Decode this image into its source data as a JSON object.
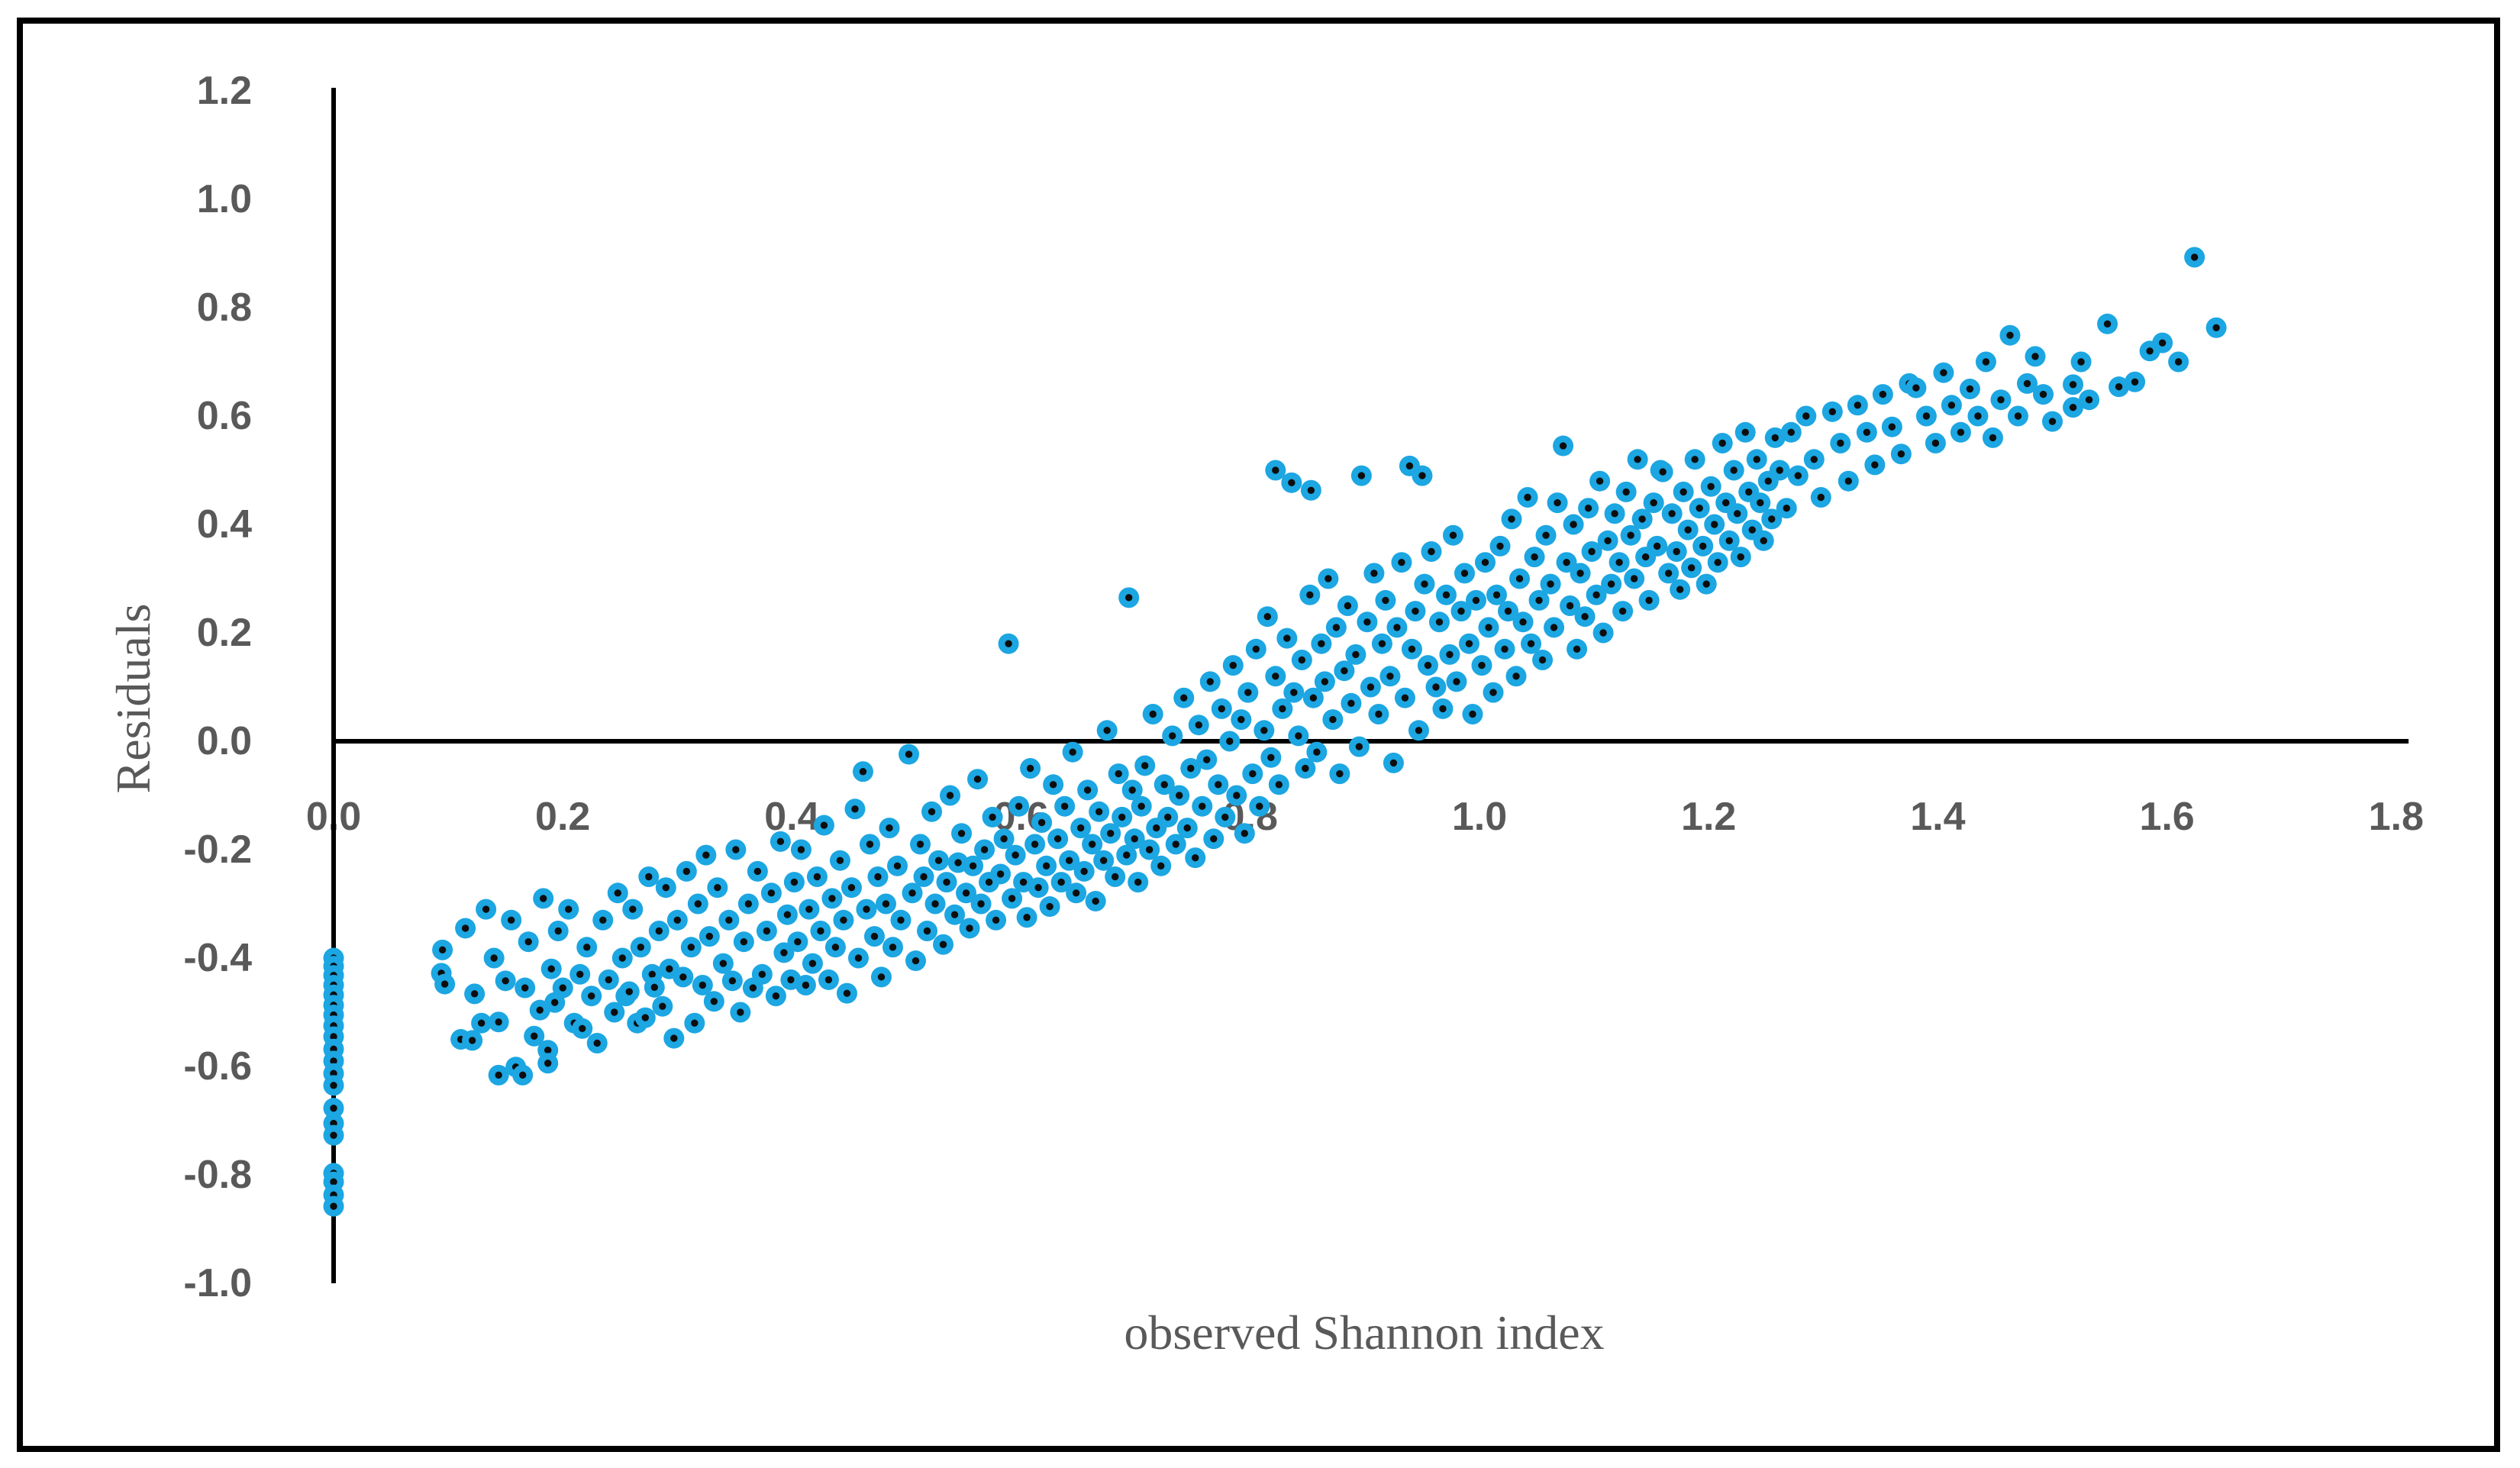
{
  "chart_data": {
    "type": "scatter",
    "xlabel": "observed Shannon index",
    "ylabel": "Residuals",
    "xlim": [
      0,
      1.8
    ],
    "ylim": [
      -1.0,
      1.2
    ],
    "grid": false,
    "legend": "none",
    "x_tick_labels": [
      "0.0",
      "0.2",
      "0.4",
      "0.6",
      "0.8",
      "1.0",
      "1.2",
      "1.4",
      "1.6",
      "1.8"
    ],
    "y_tick_labels": [
      "1.2",
      "1.0",
      "0.8",
      "0.6",
      "0.4",
      "0.2",
      "0.0",
      "-0.2",
      "-0.4",
      "-0.6",
      "-0.8",
      "-1.0"
    ],
    "colors": {
      "marker_fill": "#1CA6E2",
      "marker_center": "#0d0d0d",
      "axis_line": "#000000",
      "tick_label": "#595959",
      "axis_title": "#595959",
      "frame_border": "#000000"
    },
    "points": [
      [
        0,
        -0.4
      ],
      [
        0,
        -0.415
      ],
      [
        0,
        -0.432
      ],
      [
        0,
        -0.45
      ],
      [
        0,
        -0.468
      ],
      [
        0,
        -0.487
      ],
      [
        0,
        -0.505
      ],
      [
        0,
        -0.525
      ],
      [
        0,
        -0.545
      ],
      [
        0,
        -0.568
      ],
      [
        0,
        -0.59
      ],
      [
        0,
        -0.613
      ],
      [
        0,
        -0.635
      ],
      [
        0,
        -0.677
      ],
      [
        0,
        -0.705
      ],
      [
        0,
        -0.727
      ],
      [
        0,
        -0.797
      ],
      [
        0,
        -0.813
      ],
      [
        0,
        -0.837
      ],
      [
        0,
        -0.858
      ],
      [
        0.095,
        -0.385
      ],
      [
        0.094,
        -0.428
      ],
      [
        0.097,
        -0.448
      ],
      [
        0.111,
        -0.55
      ],
      [
        0.115,
        -0.345
      ],
      [
        0.121,
        -0.552
      ],
      [
        0.123,
        -0.466
      ],
      [
        0.129,
        -0.52
      ],
      [
        0.133,
        -0.31
      ],
      [
        0.14,
        -0.4
      ],
      [
        0.144,
        -0.518
      ],
      [
        0.144,
        -0.616
      ],
      [
        0.15,
        -0.442
      ],
      [
        0.155,
        -0.33
      ],
      [
        0.159,
        -0.601
      ],
      [
        0.165,
        -0.616
      ],
      [
        0.167,
        -0.455
      ],
      [
        0.17,
        -0.37
      ],
      [
        0.175,
        -0.544
      ],
      [
        0.18,
        -0.496
      ],
      [
        0.183,
        -0.29
      ],
      [
        0.187,
        -0.57
      ],
      [
        0.187,
        -0.594
      ],
      [
        0.19,
        -0.42
      ],
      [
        0.193,
        -0.482
      ],
      [
        0.196,
        -0.35
      ],
      [
        0.2,
        -0.455
      ],
      [
        0.205,
        -0.31
      ],
      [
        0.21,
        -0.52
      ],
      [
        0.215,
        -0.43
      ],
      [
        0.217,
        -0.53
      ],
      [
        0.221,
        -0.38
      ],
      [
        0.225,
        -0.47
      ],
      [
        0.23,
        -0.557
      ],
      [
        0.235,
        -0.33
      ],
      [
        0.24,
        -0.44
      ],
      [
        0.245,
        -0.5
      ],
      [
        0.248,
        -0.28
      ],
      [
        0.252,
        -0.4
      ],
      [
        0.255,
        -0.47
      ],
      [
        0.258,
        -0.462
      ],
      [
        0.261,
        -0.31
      ],
      [
        0.265,
        -0.52
      ],
      [
        0.268,
        -0.38
      ],
      [
        0.272,
        -0.51
      ],
      [
        0.275,
        -0.25
      ],
      [
        0.278,
        -0.43
      ],
      [
        0.28,
        -0.454
      ],
      [
        0.284,
        -0.35
      ],
      [
        0.287,
        -0.489
      ],
      [
        0.29,
        -0.27
      ],
      [
        0.293,
        -0.42
      ],
      [
        0.297,
        -0.548
      ],
      [
        0.3,
        -0.33
      ],
      [
        0.305,
        -0.435
      ],
      [
        0.308,
        -0.24
      ],
      [
        0.312,
        -0.38
      ],
      [
        0.315,
        -0.52
      ],
      [
        0.318,
        -0.3
      ],
      [
        0.322,
        -0.45
      ],
      [
        0.325,
        -0.21
      ],
      [
        0.328,
        -0.36
      ],
      [
        0.332,
        -0.48
      ],
      [
        0.335,
        -0.27
      ],
      [
        0.34,
        -0.41
      ],
      [
        0.345,
        -0.33
      ],
      [
        0.348,
        -0.442
      ],
      [
        0.351,
        -0.2
      ],
      [
        0.355,
        -0.5
      ],
      [
        0.358,
        -0.37
      ],
      [
        0.362,
        -0.3
      ],
      [
        0.366,
        -0.455
      ],
      [
        0.37,
        -0.24
      ],
      [
        0.374,
        -0.43
      ],
      [
        0.378,
        -0.35
      ],
      [
        0.382,
        -0.28
      ],
      [
        0.386,
        -0.47
      ],
      [
        0.39,
        -0.185
      ],
      [
        0.393,
        -0.39
      ],
      [
        0.396,
        -0.32
      ],
      [
        0.399,
        -0.44
      ],
      [
        0.402,
        -0.26
      ],
      [
        0.405,
        -0.37
      ],
      [
        0.408,
        -0.2
      ],
      [
        0.412,
        -0.45
      ],
      [
        0.415,
        -0.31
      ],
      [
        0.418,
        -0.41
      ],
      [
        0.422,
        -0.25
      ],
      [
        0.425,
        -0.35
      ],
      [
        0.428,
        -0.155
      ],
      [
        0.432,
        -0.44
      ],
      [
        0.435,
        -0.29
      ],
      [
        0.438,
        -0.38
      ],
      [
        0.442,
        -0.22
      ],
      [
        0.445,
        -0.33
      ],
      [
        0.448,
        -0.465
      ],
      [
        0.452,
        -0.27
      ],
      [
        0.455,
        -0.125
      ],
      [
        0.458,
        -0.4
      ],
      [
        0.462,
        -0.056
      ],
      [
        0.465,
        -0.31
      ],
      [
        0.468,
        -0.19
      ],
      [
        0.472,
        -0.36
      ],
      [
        0.475,
        -0.25
      ],
      [
        0.478,
        -0.435
      ],
      [
        0.482,
        -0.3
      ],
      [
        0.485,
        -0.16
      ],
      [
        0.488,
        -0.38
      ],
      [
        0.492,
        -0.23
      ],
      [
        0.495,
        -0.33
      ],
      [
        0.502,
        -0.024
      ],
      [
        0.505,
        -0.28
      ],
      [
        0.508,
        -0.405
      ],
      [
        0.512,
        -0.19
      ],
      [
        0.515,
        -0.25
      ],
      [
        0.518,
        -0.35
      ],
      [
        0.522,
        -0.13
      ],
      [
        0.525,
        -0.3
      ],
      [
        0.528,
        -0.22
      ],
      [
        0.532,
        -0.375
      ],
      [
        0.535,
        -0.26
      ],
      [
        0.538,
        -0.1
      ],
      [
        0.542,
        -0.32
      ],
      [
        0.545,
        -0.224
      ],
      [
        0.548,
        -0.17
      ],
      [
        0.552,
        -0.28
      ],
      [
        0.555,
        -0.345
      ],
      [
        0.558,
        -0.23
      ],
      [
        0.562,
        -0.07
      ],
      [
        0.565,
        -0.3
      ],
      [
        0.568,
        -0.2
      ],
      [
        0.572,
        -0.26
      ],
      [
        0.575,
        -0.14
      ],
      [
        0.578,
        -0.33
      ],
      [
        0.582,
        -0.245
      ],
      [
        0.585,
        -0.18
      ],
      [
        0.589,
        0.18
      ],
      [
        0.592,
        -0.29
      ],
      [
        0.595,
        -0.21
      ],
      [
        0.598,
        -0.12
      ],
      [
        0.602,
        -0.26
      ],
      [
        0.605,
        -0.325
      ],
      [
        0.608,
        -0.05
      ],
      [
        0.612,
        -0.19
      ],
      [
        0.615,
        -0.27
      ],
      [
        0.618,
        -0.15
      ],
      [
        0.622,
        -0.23
      ],
      [
        0.625,
        -0.305
      ],
      [
        0.628,
        -0.08
      ],
      [
        0.632,
        -0.18
      ],
      [
        0.635,
        -0.26
      ],
      [
        0.638,
        -0.12
      ],
      [
        0.642,
        -0.22
      ],
      [
        0.645,
        -0.02
      ],
      [
        0.648,
        -0.28
      ],
      [
        0.652,
        -0.16
      ],
      [
        0.655,
        -0.24
      ],
      [
        0.658,
        -0.09
      ],
      [
        0.662,
        -0.19
      ],
      [
        0.665,
        -0.295
      ],
      [
        0.668,
        -0.13
      ],
      [
        0.672,
        -0.22
      ],
      [
        0.675,
        0.02
      ],
      [
        0.678,
        -0.17
      ],
      [
        0.682,
        -0.25
      ],
      [
        0.685,
        -0.06
      ],
      [
        0.688,
        -0.14
      ],
      [
        0.692,
        -0.21
      ],
      [
        0.694,
        0.265
      ],
      [
        0.697,
        -0.09
      ],
      [
        0.699,
        -0.18
      ],
      [
        0.702,
        -0.26
      ],
      [
        0.705,
        -0.12
      ],
      [
        0.708,
        -0.045
      ],
      [
        0.712,
        -0.2
      ],
      [
        0.715,
        0.05
      ],
      [
        0.718,
        -0.16
      ],
      [
        0.722,
        -0.23
      ],
      [
        0.725,
        -0.08
      ],
      [
        0.728,
        -0.14
      ],
      [
        0.732,
        0.01
      ],
      [
        0.735,
        -0.19
      ],
      [
        0.738,
        -0.1
      ],
      [
        0.742,
        0.08
      ],
      [
        0.745,
        -0.16
      ],
      [
        0.748,
        -0.05
      ],
      [
        0.752,
        -0.215
      ],
      [
        0.755,
        0.03
      ],
      [
        0.758,
        -0.12
      ],
      [
        0.762,
        -0.034
      ],
      [
        0.765,
        0.11
      ],
      [
        0.768,
        -0.18
      ],
      [
        0.772,
        -0.08
      ],
      [
        0.775,
        0.06
      ],
      [
        0.778,
        -0.14
      ],
      [
        0.782,
        0
      ],
      [
        0.785,
        0.14
      ],
      [
        0.788,
        -0.1
      ],
      [
        0.792,
        0.04
      ],
      [
        0.795,
        -0.17
      ],
      [
        0.798,
        0.09
      ],
      [
        0.802,
        -0.06
      ],
      [
        0.805,
        0.17
      ],
      [
        0.808,
        -0.12
      ],
      [
        0.812,
        0.02
      ],
      [
        0.815,
        0.23
      ],
      [
        0.818,
        -0.03
      ],
      [
        0.822,
        0.5
      ],
      [
        0.822,
        0.12
      ],
      [
        0.825,
        -0.08
      ],
      [
        0.828,
        0.06
      ],
      [
        0.832,
        0.19
      ],
      [
        0.836,
        0.477
      ],
      [
        0.838,
        0.09
      ],
      [
        0.842,
        0.01
      ],
      [
        0.845,
        0.15
      ],
      [
        0.848,
        -0.05
      ],
      [
        0.852,
        0.27
      ],
      [
        0.853,
        0.463
      ],
      [
        0.855,
        0.08
      ],
      [
        0.858,
        -0.02
      ],
      [
        0.862,
        0.18
      ],
      [
        0.865,
        0.11
      ],
      [
        0.868,
        0.3
      ],
      [
        0.872,
        0.04
      ],
      [
        0.875,
        0.21
      ],
      [
        0.878,
        -0.06
      ],
      [
        0.882,
        0.13
      ],
      [
        0.885,
        0.25
      ],
      [
        0.888,
        0.07
      ],
      [
        0.892,
        0.16
      ],
      [
        0.895,
        -0.01
      ],
      [
        0.897,
        0.49
      ],
      [
        0.902,
        0.22
      ],
      [
        0.905,
        0.1
      ],
      [
        0.908,
        0.31
      ],
      [
        0.912,
        0.05
      ],
      [
        0.915,
        0.18
      ],
      [
        0.918,
        0.26
      ],
      [
        0.922,
        0.12
      ],
      [
        0.925,
        -0.04
      ],
      [
        0.928,
        0.21
      ],
      [
        0.932,
        0.33
      ],
      [
        0.935,
        0.08
      ],
      [
        0.939,
        0.508
      ],
      [
        0.941,
        0.17
      ],
      [
        0.944,
        0.24
      ],
      [
        0.947,
        0.02
      ],
      [
        0.95,
        0.49
      ],
      [
        0.952,
        0.29
      ],
      [
        0.955,
        0.14
      ],
      [
        0.958,
        0.35
      ],
      [
        0.962,
        0.1
      ],
      [
        0.965,
        0.22
      ],
      [
        0.968,
        0.06
      ],
      [
        0.971,
        0.27
      ],
      [
        0.974,
        0.16
      ],
      [
        0.977,
        0.38
      ],
      [
        0.98,
        0.11
      ],
      [
        0.984,
        0.24
      ],
      [
        0.987,
        0.31
      ],
      [
        0.991,
        0.18
      ],
      [
        0.994,
        0.05
      ],
      [
        0.997,
        0.26
      ],
      [
        1.002,
        0.14
      ],
      [
        1.005,
        0.33
      ],
      [
        1.008,
        0.21
      ],
      [
        1.012,
        0.09
      ],
      [
        1.015,
        0.27
      ],
      [
        1.018,
        0.36
      ],
      [
        1.022,
        0.17
      ],
      [
        1.025,
        0.24
      ],
      [
        1.028,
        0.41
      ],
      [
        1.032,
        0.12
      ],
      [
        1.035,
        0.3
      ],
      [
        1.038,
        0.22
      ],
      [
        1.042,
        0.45
      ],
      [
        1.045,
        0.18
      ],
      [
        1.048,
        0.34
      ],
      [
        1.052,
        0.26
      ],
      [
        1.055,
        0.15
      ],
      [
        1.058,
        0.38
      ],
      [
        1.062,
        0.29
      ],
      [
        1.065,
        0.21
      ],
      [
        1.068,
        0.44
      ],
      [
        1.073,
        0.545
      ],
      [
        1.076,
        0.33
      ],
      [
        1.079,
        0.25
      ],
      [
        1.082,
        0.4
      ],
      [
        1.085,
        0.17
      ],
      [
        1.088,
        0.31
      ],
      [
        1.092,
        0.23
      ],
      [
        1.095,
        0.43
      ],
      [
        1.098,
        0.35
      ],
      [
        1.102,
        0.27
      ],
      [
        1.105,
        0.48
      ],
      [
        1.108,
        0.2
      ],
      [
        1.112,
        0.37
      ],
      [
        1.115,
        0.29
      ],
      [
        1.118,
        0.42
      ],
      [
        1.122,
        0.33
      ],
      [
        1.125,
        0.24
      ],
      [
        1.128,
        0.46
      ],
      [
        1.132,
        0.38
      ],
      [
        1.135,
        0.3
      ],
      [
        1.138,
        0.52
      ],
      [
        1.142,
        0.41
      ],
      [
        1.145,
        0.34
      ],
      [
        1.148,
        0.26
      ],
      [
        1.152,
        0.44
      ],
      [
        1.155,
        0.36
      ],
      [
        1.158,
        0.5
      ],
      [
        1.16,
        0.497
      ],
      [
        1.165,
        0.31
      ],
      [
        1.168,
        0.42
      ],
      [
        1.172,
        0.35
      ],
      [
        1.175,
        0.28
      ],
      [
        1.178,
        0.46
      ],
      [
        1.182,
        0.39
      ],
      [
        1.185,
        0.32
      ],
      [
        1.188,
        0.52
      ],
      [
        1.192,
        0.43
      ],
      [
        1.195,
        0.36
      ],
      [
        1.198,
        0.29
      ],
      [
        1.202,
        0.47
      ],
      [
        1.205,
        0.4
      ],
      [
        1.208,
        0.33
      ],
      [
        1.212,
        0.55
      ],
      [
        1.215,
        0.44
      ],
      [
        1.218,
        0.37
      ],
      [
        1.222,
        0.5
      ],
      [
        1.225,
        0.42
      ],
      [
        1.228,
        0.34
      ],
      [
        1.232,
        0.57
      ],
      [
        1.235,
        0.46
      ],
      [
        1.238,
        0.39
      ],
      [
        1.242,
        0.52
      ],
      [
        1.245,
        0.44
      ],
      [
        1.248,
        0.37
      ],
      [
        1.252,
        0.48
      ],
      [
        1.255,
        0.41
      ],
      [
        1.258,
        0.56
      ],
      [
        1.262,
        0.5
      ],
      [
        1.268,
        0.43
      ],
      [
        1.272,
        0.57
      ],
      [
        1.278,
        0.49
      ],
      [
        1.285,
        0.6
      ],
      [
        1.292,
        0.52
      ],
      [
        1.298,
        0.45
      ],
      [
        1.308,
        0.608
      ],
      [
        1.315,
        0.55
      ],
      [
        1.322,
        0.48
      ],
      [
        1.33,
        0.62
      ],
      [
        1.338,
        0.57
      ],
      [
        1.345,
        0.51
      ],
      [
        1.352,
        0.64
      ],
      [
        1.36,
        0.58
      ],
      [
        1.368,
        0.53
      ],
      [
        1.375,
        0.66
      ],
      [
        1.381,
        0.652
      ],
      [
        1.39,
        0.6
      ],
      [
        1.398,
        0.55
      ],
      [
        1.405,
        0.68
      ],
      [
        1.412,
        0.62
      ],
      [
        1.42,
        0.57
      ],
      [
        1.428,
        0.65
      ],
      [
        1.435,
        0.6
      ],
      [
        1.442,
        0.7
      ],
      [
        1.448,
        0.56
      ],
      [
        1.455,
        0.63
      ],
      [
        1.463,
        0.749
      ],
      [
        1.47,
        0.6
      ],
      [
        1.478,
        0.66
      ],
      [
        1.485,
        0.71
      ],
      [
        1.492,
        0.64
      ],
      [
        1.5,
        0.59
      ],
      [
        1.518,
        0.658
      ],
      [
        1.518,
        0.616
      ],
      [
        1.525,
        0.7
      ],
      [
        1.532,
        0.63
      ],
      [
        1.548,
        0.77
      ],
      [
        1.558,
        0.654
      ],
      [
        1.572,
        0.663
      ],
      [
        1.585,
        0.72
      ],
      [
        1.596,
        0.735
      ],
      [
        1.61,
        0.7
      ],
      [
        1.624,
        0.893
      ],
      [
        1.643,
        0.763
      ]
    ]
  }
}
